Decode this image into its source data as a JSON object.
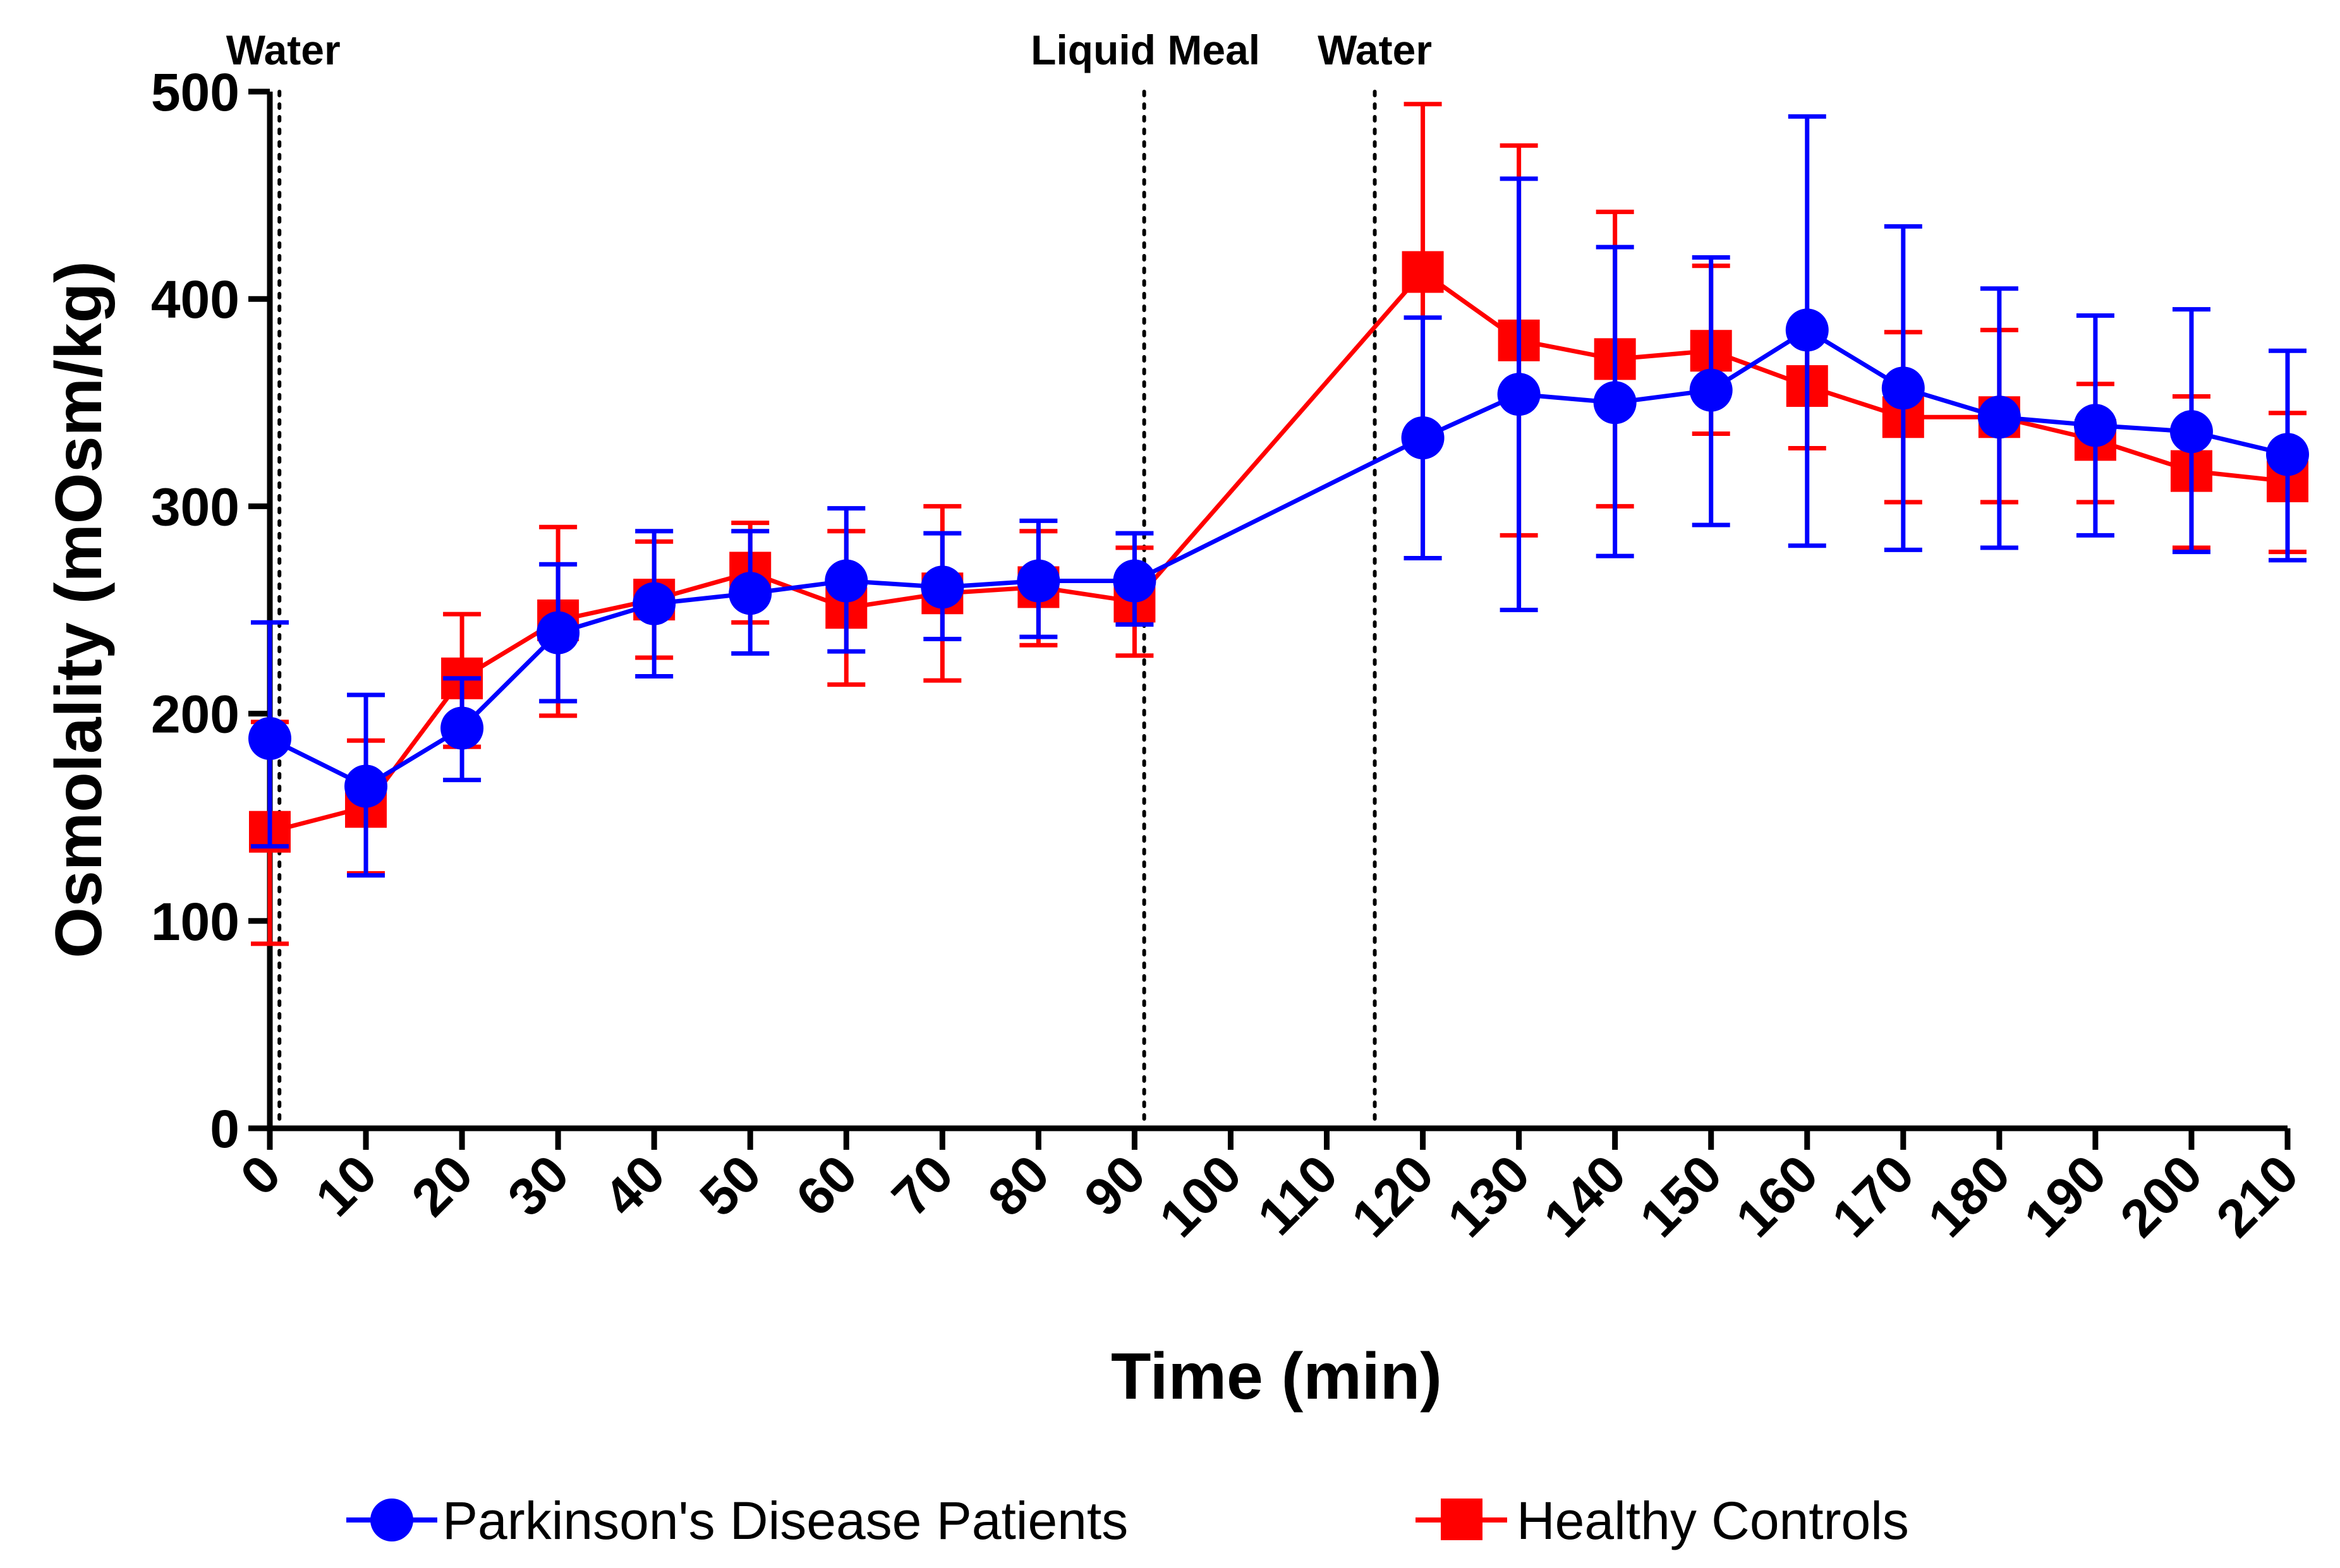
{
  "chart_data": {
    "type": "line",
    "title": "",
    "xlabel": "Time (min)",
    "ylabel": "Osmolality (mOsm/kg)",
    "xlim": [
      0,
      210
    ],
    "ylim": [
      0,
      500
    ],
    "xticks": [
      0,
      10,
      20,
      30,
      40,
      50,
      60,
      70,
      80,
      90,
      100,
      110,
      120,
      130,
      140,
      150,
      160,
      170,
      180,
      190,
      200,
      210
    ],
    "yticks": [
      0,
      100,
      200,
      300,
      400,
      500
    ],
    "events": [
      {
        "x": 1,
        "label": "Water"
      },
      {
        "x": 91,
        "label": "Liquid Meal"
      },
      {
        "x": 115,
        "label": "Water"
      }
    ],
    "legend_position": "bottom",
    "series": [
      {
        "name": "Parkinson's Disease Patients",
        "color": "#0000ff",
        "marker": "circle",
        "x": [
          0,
          10,
          20,
          30,
          40,
          50,
          60,
          70,
          80,
          90,
          120,
          130,
          140,
          150,
          160,
          170,
          180,
          190,
          200,
          210
        ],
        "values": [
          188,
          165,
          193,
          239,
          253,
          258,
          264,
          261,
          264,
          264,
          333,
          354,
          350,
          356,
          385,
          357,
          343,
          339,
          336,
          325
        ],
        "err_low": [
          136,
          122,
          168,
          206,
          218,
          229,
          230,
          236,
          237,
          243,
          275,
          250,
          276,
          291,
          281,
          279,
          280,
          286,
          278,
          274
        ],
        "err_high": [
          244,
          209,
          217,
          272,
          288,
          288,
          299,
          287,
          293,
          287,
          391,
          458,
          425,
          420,
          488,
          435,
          405,
          392,
          395,
          375
        ]
      },
      {
        "name": "Healthy Controls",
        "color": "#ff0000",
        "marker": "square",
        "x": [
          0,
          10,
          20,
          30,
          40,
          50,
          60,
          70,
          80,
          90,
          120,
          130,
          140,
          150,
          160,
          170,
          180,
          190,
          200,
          210
        ],
        "values": [
          143,
          155,
          217,
          245,
          255,
          268,
          251,
          258,
          261,
          254,
          413,
          380,
          371,
          375,
          358,
          343,
          343,
          332,
          317,
          312
        ],
        "err_low": [
          89,
          123,
          184,
          199,
          227,
          244,
          214,
          216,
          233,
          228,
          275,
          286,
          300,
          335,
          328,
          302,
          302,
          302,
          280,
          278
        ],
        "err_high": [
          196,
          187,
          248,
          290,
          283,
          292,
          288,
          300,
          288,
          280,
          494,
          474,
          442,
          416,
          385,
          384,
          385,
          359,
          353,
          345
        ]
      }
    ]
  }
}
